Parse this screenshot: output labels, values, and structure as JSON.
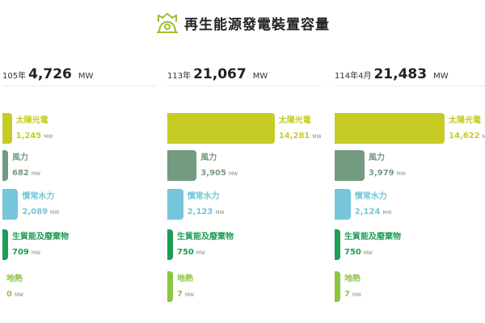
{
  "page_title": "再生能源發電裝置容量",
  "logo_icon": "power-plant-icon",
  "unit": "MW",
  "colors": {
    "accent": "#9bbf2c",
    "solar": "#c6cc24",
    "wind": "#739b80",
    "hydro": "#74c6d8",
    "biomass": "#1f9c55",
    "geothermal": "#8cc63f"
  },
  "chart_data": {
    "type": "bar",
    "categories": [
      "太陽光電",
      "風力",
      "慣常水力",
      "生質能及廢棄物",
      "地熱"
    ],
    "series": [
      {
        "name": "105年",
        "total": "4,726",
        "values": [
          1245,
          682,
          2089,
          709,
          0
        ]
      },
      {
        "name": "113年",
        "total": "21,067",
        "values": [
          14281,
          3905,
          2123,
          750,
          7
        ]
      },
      {
        "name": "114年4月",
        "total": "21,483",
        "values": [
          14622,
          3979,
          2124,
          750,
          7
        ]
      }
    ],
    "value_labels": [
      [
        "1,245",
        "682",
        "2,089",
        "709",
        "0"
      ],
      [
        "14,281",
        "3,905",
        "2,123",
        "750",
        "7"
      ],
      [
        "14,622",
        "3,979",
        "2,124",
        "750",
        "7"
      ]
    ],
    "xlabel": "",
    "ylabel": "",
    "grid": false,
    "legend": "none"
  }
}
